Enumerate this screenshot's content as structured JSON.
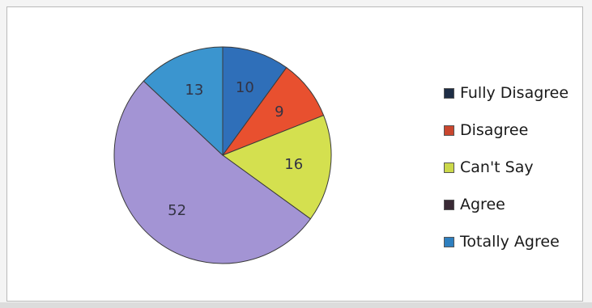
{
  "chart_data": {
    "type": "pie",
    "title": "",
    "legend_position": "right",
    "slices": [
      {
        "label": "Fully Disagree",
        "value": 10,
        "color": "#2f6fb9"
      },
      {
        "label": "Disagree",
        "value": 9,
        "color": "#e8502f"
      },
      {
        "label": "Can't Say",
        "value": 16,
        "color": "#d4e04f"
      },
      {
        "label": "Agree",
        "value": 52,
        "color": "#a394d4"
      },
      {
        "label": "Totally Agree",
        "value": 13,
        "color": "#3b95cf"
      }
    ]
  },
  "legend": {
    "items": [
      {
        "label": "Fully Disagree",
        "color": "#1e2d45"
      },
      {
        "label": "Disagree",
        "color": "#c9462e"
      },
      {
        "label": "Can't Say",
        "color": "#cbd84a"
      },
      {
        "label": "Agree",
        "color": "#3a2a35"
      },
      {
        "label": "Totally Agree",
        "color": "#2e7fbf"
      }
    ]
  }
}
